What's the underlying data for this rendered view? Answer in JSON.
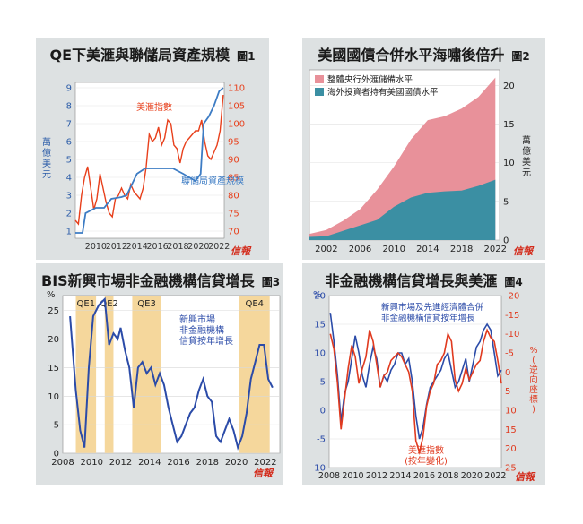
{
  "panels": [
    {
      "title": "QE下美滙與聯儲局資產規模",
      "fig": "圖1"
    },
    {
      "title": "美國國債合併水平海嘯後倍升",
      "fig": "圖2"
    },
    {
      "title": "BIS新興市場非金融機構信貸增長",
      "fig": "圖3"
    },
    {
      "title": "非金融機構信貸增長與美滙",
      "fig": "圖4"
    }
  ],
  "source_mark": "信報",
  "chart_data": [
    {
      "type": "line",
      "title": "QE下美滙與聯儲局資產規模",
      "ylabel": "萬億美元",
      "y2lim": [
        70,
        110
      ],
      "ylim": [
        1,
        9
      ],
      "xlim": [
        2008,
        2022.5
      ],
      "x_ticks": [
        "2010",
        "2012",
        "2014",
        "2016",
        "2018",
        "2020",
        "2022"
      ],
      "y_ticks": [
        "1",
        "2",
        "3",
        "4",
        "5",
        "6",
        "7",
        "8",
        "9"
      ],
      "y2_ticks": [
        "70",
        "75",
        "80",
        "85",
        "90",
        "95",
        "100",
        "105",
        "110"
      ],
      "series": [
        {
          "name": "美滙指數",
          "color": "#e8401c",
          "axis": "right",
          "x": [
            2008.0,
            2008.3,
            2008.6,
            2008.9,
            2009.2,
            2009.5,
            2009.8,
            2010.1,
            2010.4,
            2010.7,
            2011.0,
            2011.3,
            2011.6,
            2011.9,
            2012.2,
            2012.5,
            2012.8,
            2013.1,
            2013.4,
            2013.7,
            2014.0,
            2014.3,
            2014.6,
            2014.9,
            2015.2,
            2015.5,
            2015.8,
            2016.1,
            2016.4,
            2016.7,
            2017.0,
            2017.3,
            2017.6,
            2017.9,
            2018.2,
            2018.5,
            2018.8,
            2019.1,
            2019.4,
            2019.7,
            2020.0,
            2020.3,
            2020.6,
            2020.9,
            2021.2,
            2021.5,
            2021.8,
            2022.1,
            2022.4
          ],
          "y": [
            73,
            72,
            80,
            85,
            88,
            82,
            76,
            79,
            86,
            82,
            78,
            75,
            74,
            79,
            80,
            82,
            80,
            79,
            83,
            81,
            80,
            79,
            82,
            88,
            97,
            95,
            96,
            99,
            94,
            96,
            101,
            100,
            94,
            93,
            89,
            93,
            95,
            96,
            97,
            98,
            98,
            101,
            95,
            91,
            90,
            92,
            94,
            98,
            108
          ]
        },
        {
          "name": "聯儲局資產規模",
          "color": "#3d7cc4",
          "axis": "left",
          "x": [
            2008.0,
            2008.7,
            2009.0,
            2010.0,
            2010.8,
            2011.5,
            2012.5,
            2013.0,
            2014.0,
            2014.8,
            2016.0,
            2017.5,
            2018.5,
            2019.7,
            2020.2,
            2020.5,
            2021.0,
            2021.5,
            2022.0,
            2022.4
          ],
          "y": [
            0.9,
            0.9,
            2.0,
            2.3,
            2.3,
            2.8,
            2.9,
            3.0,
            4.2,
            4.5,
            4.5,
            4.5,
            4.2,
            3.8,
            4.2,
            7.0,
            7.4,
            8.0,
            8.8,
            9.0
          ]
        }
      ]
    },
    {
      "type": "area",
      "title": "美國國債合併水平海嘯後倍升",
      "ylabel": "萬億美元",
      "ylim": [
        0,
        22
      ],
      "xlim": [
        2000,
        2022.5
      ],
      "x_ticks": [
        "2002",
        "2006",
        "2010",
        "2014",
        "2018",
        "2022"
      ],
      "y_ticks": [
        "0",
        "5",
        "10",
        "15",
        "20"
      ],
      "series": [
        {
          "name": "整體央行外滙儲備水平",
          "color": "#e8919a",
          "x": [
            2000,
            2002,
            2004,
            2006,
            2008,
            2010,
            2012,
            2014,
            2016,
            2018,
            2020,
            2022
          ],
          "y": [
            0.8,
            1.3,
            2.5,
            4.0,
            6.5,
            9.5,
            13.0,
            15.5,
            16.0,
            17.0,
            18.5,
            21.0
          ]
        },
        {
          "name": "海外投資者持有美國國債水平",
          "color": "#3b8fa3",
          "x": [
            2000,
            2002,
            2004,
            2006,
            2008,
            2010,
            2012,
            2014,
            2016,
            2018,
            2020,
            2022
          ],
          "y": [
            0.4,
            0.5,
            1.2,
            1.9,
            2.6,
            4.3,
            5.5,
            6.1,
            6.3,
            6.4,
            7.0,
            7.8
          ]
        }
      ]
    },
    {
      "type": "line",
      "title": "BIS新興市場非金融機構信貸增長",
      "ylabel": "%",
      "ylim": [
        0,
        27
      ],
      "xlim": [
        2008,
        2023
      ],
      "x_ticks": [
        "2008",
        "2010",
        "2012",
        "2014",
        "2016",
        "2018",
        "2020",
        "2022"
      ],
      "y_ticks": [
        "0",
        "5",
        "10",
        "15",
        "20",
        "25"
      ],
      "annotations": [
        "新興市場",
        "非金融機構",
        "信貸按年增長"
      ],
      "shaded": [
        {
          "label": "QE1",
          "start": 2008.9,
          "end": 2010.3
        },
        {
          "label": "QE2",
          "start": 2010.9,
          "end": 2011.5
        },
        {
          "label": "QE3",
          "start": 2012.8,
          "end": 2014.8
        },
        {
          "label": "QE4",
          "start": 2020.2,
          "end": 2022.3
        }
      ],
      "series": [
        {
          "name": "新興市場非金融機構信貸按年增長",
          "color": "#2b4ba8",
          "x": [
            2008.5,
            2008.9,
            2009.2,
            2009.5,
            2009.8,
            2010.1,
            2010.5,
            2010.9,
            2011.2,
            2011.5,
            2011.8,
            2012.0,
            2012.3,
            2012.6,
            2012.9,
            2013.2,
            2013.5,
            2013.8,
            2014.1,
            2014.4,
            2014.7,
            2015.0,
            2015.3,
            2015.6,
            2015.9,
            2016.2,
            2016.5,
            2016.8,
            2017.1,
            2017.4,
            2017.7,
            2018.0,
            2018.3,
            2018.6,
            2018.9,
            2019.2,
            2019.5,
            2019.8,
            2020.1,
            2020.4,
            2020.7,
            2021.0,
            2021.3,
            2021.6,
            2021.9,
            2022.2,
            2022.5
          ],
          "y": [
            24,
            11,
            4,
            1,
            15,
            24,
            26,
            27,
            19,
            21,
            20,
            22,
            18,
            15,
            8,
            15,
            16,
            14,
            15,
            12,
            14,
            12,
            8,
            5,
            2,
            3,
            5,
            7,
            8,
            11,
            13,
            10,
            9,
            3,
            2,
            4,
            6,
            4,
            1,
            3,
            7,
            13,
            16,
            19,
            19,
            13,
            11.5
          ]
        }
      ]
    },
    {
      "type": "line",
      "title": "非金融機構信貸增長與美滙",
      "ylabel": "%",
      "y2label": "%(逆向座標)",
      "ylim": [
        -10,
        20
      ],
      "y2lim": [
        -20,
        25
      ],
      "xlim": [
        2008,
        2022.5
      ],
      "x_ticks": [
        "2008",
        "2010",
        "2012",
        "2014",
        "2016",
        "2018",
        "2020",
        "2022"
      ],
      "y_ticks": [
        "-10",
        "-5",
        "0",
        "5",
        "10",
        "15",
        "20"
      ],
      "y2_ticks": [
        "-20",
        "-15",
        "-10",
        "-5",
        "0",
        "5",
        "10",
        "15",
        "20",
        "25"
      ],
      "annotations": [
        "新興市場及先進經濟體合併",
        "非金融機構信貸按年增長",
        "美滙指數",
        "(按年變化)"
      ],
      "series": [
        {
          "name": "新興市場及先進經濟體合併非金融機構信貸按年增長",
          "color": "#2b4ba8",
          "axis": "left",
          "x": [
            2008.1,
            2008.4,
            2008.7,
            2009.0,
            2009.3,
            2009.6,
            2009.9,
            2010.2,
            2010.5,
            2010.8,
            2011.1,
            2011.4,
            2011.7,
            2012.0,
            2012.3,
            2012.6,
            2012.9,
            2013.2,
            2013.5,
            2013.8,
            2014.1,
            2014.4,
            2014.7,
            2015.0,
            2015.3,
            2015.6,
            2015.9,
            2016.2,
            2016.5,
            2016.8,
            2017.1,
            2017.4,
            2017.7,
            2018.0,
            2018.3,
            2018.6,
            2018.9,
            2019.2,
            2019.5,
            2019.8,
            2020.1,
            2020.4,
            2020.7,
            2021.0,
            2021.3,
            2021.6,
            2021.9,
            2022.2,
            2022.5
          ],
          "y": [
            17,
            12,
            6,
            -2,
            3,
            5,
            9,
            13,
            10,
            6,
            4,
            8,
            11,
            9,
            4,
            6,
            5,
            7,
            8,
            10,
            10,
            8,
            9,
            5,
            -1,
            -5,
            -3,
            1,
            4,
            5,
            6,
            7,
            9,
            10,
            7,
            4,
            5,
            7,
            9,
            5,
            8,
            11,
            12,
            14,
            15,
            14,
            10,
            6,
            7
          ]
        },
        {
          "name": "美滙指數(按年變化)",
          "color": "#e03a1f",
          "axis": "right",
          "x": [
            2008.1,
            2008.4,
            2008.7,
            2009.0,
            2009.3,
            2009.6,
            2009.9,
            2010.2,
            2010.5,
            2010.8,
            2011.1,
            2011.4,
            2011.7,
            2012.0,
            2012.3,
            2012.6,
            2012.9,
            2013.2,
            2013.5,
            2013.8,
            2014.1,
            2014.4,
            2014.7,
            2015.0,
            2015.3,
            2015.6,
            2015.9,
            2016.2,
            2016.5,
            2016.8,
            2017.1,
            2017.4,
            2017.7,
            2018.0,
            2018.3,
            2018.6,
            2018.9,
            2019.2,
            2019.5,
            2019.8,
            2020.1,
            2020.4,
            2020.7,
            2021.0,
            2021.3,
            2021.6,
            2021.9,
            2022.2,
            2022.5
          ],
          "y": [
            -10,
            -6,
            3,
            15,
            7,
            -1,
            -7,
            -4,
            3,
            -1,
            -4,
            -11,
            -8,
            -2,
            4,
            1,
            0,
            -3,
            -4,
            -5,
            -4,
            -2,
            0,
            5,
            18,
            21,
            17,
            9,
            5,
            3,
            -2,
            -3,
            -5,
            -10,
            -8,
            2,
            5,
            3,
            -1,
            2,
            0,
            -2,
            -3,
            -8,
            -11,
            -9,
            -8,
            -3,
            3
          ]
        }
      ]
    }
  ]
}
